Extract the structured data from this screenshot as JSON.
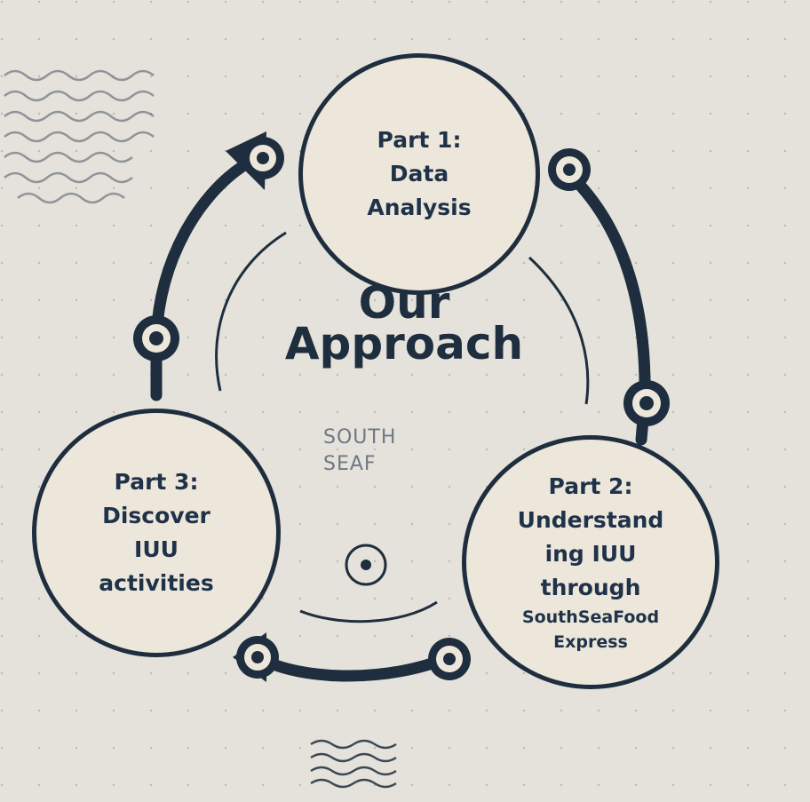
{
  "title": {
    "line1": "Our",
    "line2": "Approach"
  },
  "watermark": {
    "line1": "SOUTH",
    "line2": "SEAF"
  },
  "parts": {
    "part1": {
      "label": "Part 1:",
      "line2": "Data",
      "line3": "Analysis"
    },
    "part2": {
      "label": "Part 2:",
      "line2": "Understand",
      "line3": "ing IUU",
      "line4": "through",
      "line5": "SouthSeaFood",
      "line6": "Express"
    },
    "part3": {
      "label": "Part 3:",
      "line2": "Discover",
      "line3": "IUU",
      "line4": "activities"
    }
  },
  "icons": [
    "wave-pattern-icon",
    "cycle-arrow-icon",
    "ring-node-icon",
    "target-icon"
  ],
  "colors": {
    "background": "#e4e2da",
    "circle_fill": "#ece7da",
    "ink": "#1f2e3e",
    "text": "#1f3249"
  }
}
